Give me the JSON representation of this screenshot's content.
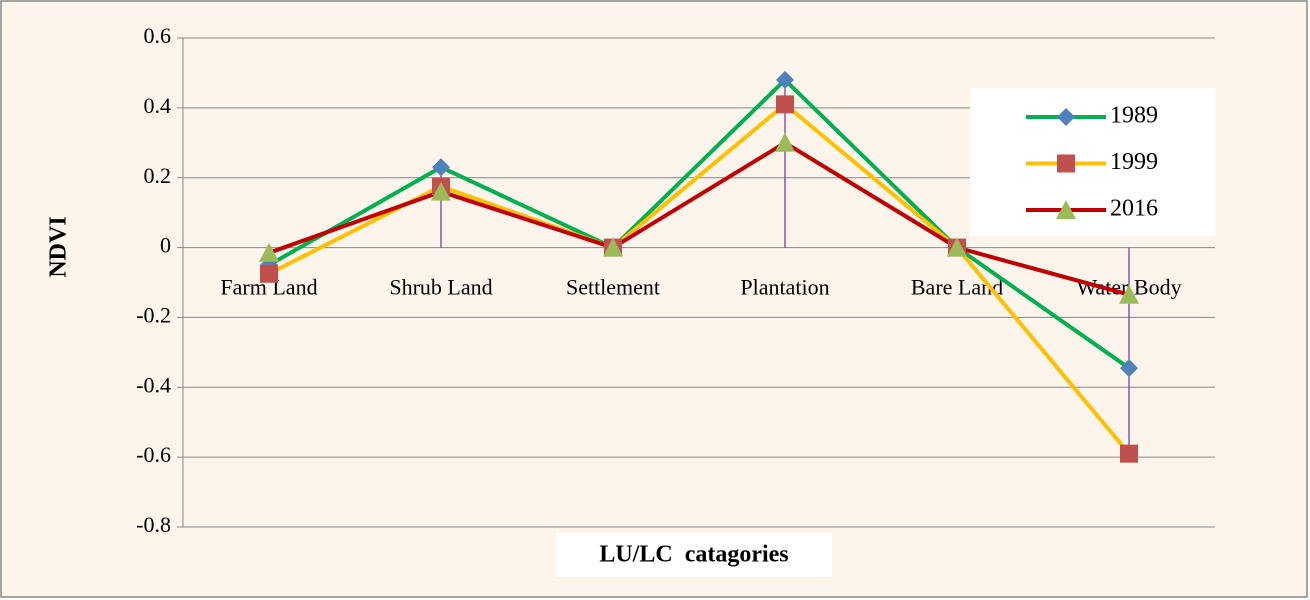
{
  "chart_data": {
    "type": "line",
    "x_label": "LU/LC  catagories",
    "y_label": "NDVI",
    "categories": [
      "Farm Land",
      "Shrub Land",
      "Settlement",
      "Plantation",
      "Bare Land",
      "Water Body"
    ],
    "series": [
      {
        "name": "1989",
        "color": "#00b050",
        "marker": "diamond",
        "marker_color": "#4f81bd",
        "values": [
          -0.05,
          0.23,
          0,
          0.48,
          0,
          -0.345
        ]
      },
      {
        "name": "1999",
        "color": "#ffc000",
        "marker": "square",
        "marker_color": "#c0504d",
        "values": [
          -0.075,
          0.175,
          0,
          0.41,
          0,
          -0.59
        ]
      },
      {
        "name": "2016",
        "color": "#c00000",
        "marker": "triangle",
        "marker_color": "#9bbb59",
        "values": [
          -0.015,
          0.16,
          0,
          0.3,
          0,
          -0.135
        ]
      }
    ],
    "ylim": [
      -0.8,
      0.6
    ],
    "yticks": [
      0.6,
      0.4,
      0.2,
      0,
      -0.2,
      -0.4,
      -0.6,
      -0.8
    ],
    "grid": true,
    "drop_lines": true,
    "legend": "right"
  }
}
